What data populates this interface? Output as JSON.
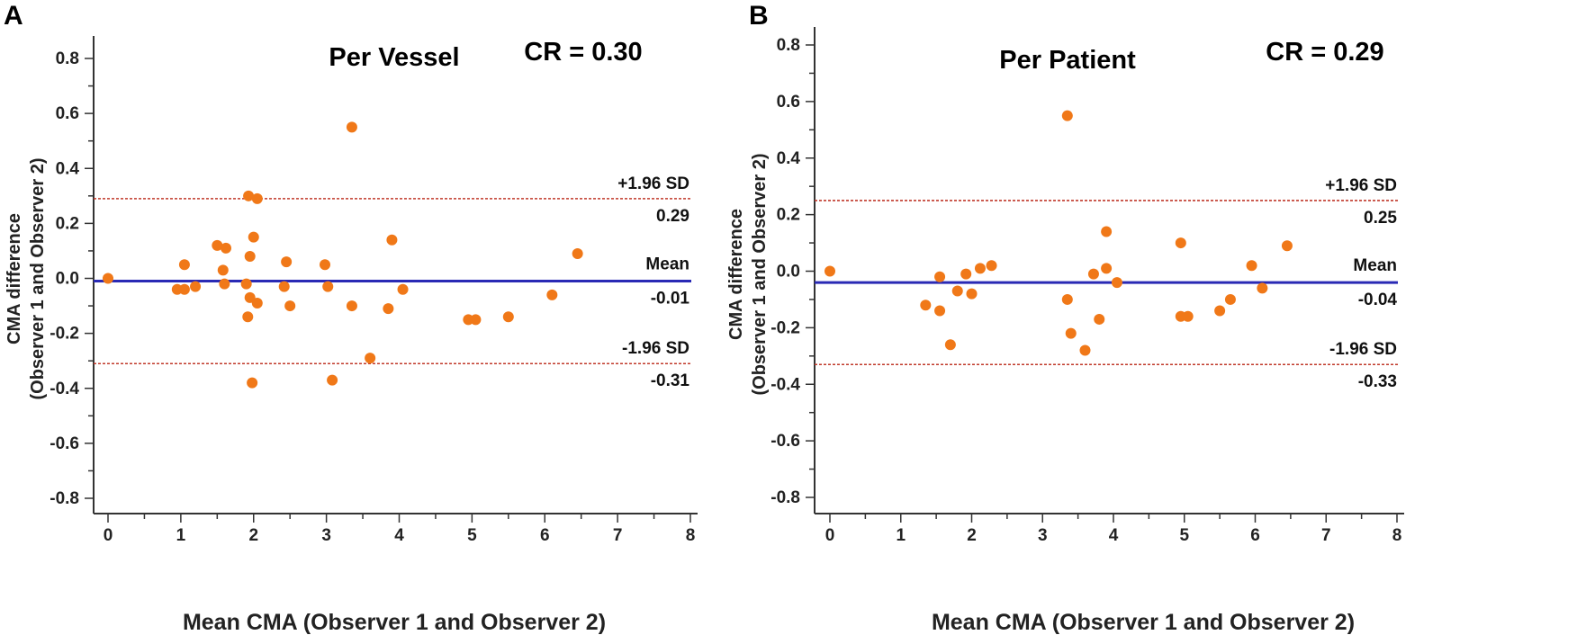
{
  "colors": {
    "point": "#f07818",
    "mean_line": "#2a2ab5",
    "limit_line": "#c0392b",
    "axis": "#333333"
  },
  "chart_data": [
    {
      "type": "scatter",
      "panel": "A",
      "title": "Per Vessel",
      "annotation": "CR = 0.30",
      "xlabel": "Mean CMA (Observer 1 and Observer 2)",
      "ylabel": [
        "CMA difference",
        "(Observer 1 and Observer 2)"
      ],
      "xlim": [
        0,
        8
      ],
      "ylim": [
        -0.85,
        0.85
      ],
      "xticks": [
        "0",
        "1",
        "2",
        "3",
        "4",
        "5",
        "6",
        "7",
        "8"
      ],
      "yticks": [
        "0.8",
        "0.6",
        "0.4",
        "0.2",
        "0.0",
        "-0.2",
        "-0.4",
        "-0.6",
        "-0.8"
      ],
      "grid": false,
      "lines": {
        "upper": {
          "label": "+1.96 SD",
          "value": 0.29,
          "value_text": "0.29"
        },
        "mean": {
          "label": "Mean",
          "value": -0.01,
          "value_text": "-0.01"
        },
        "lower": {
          "label": "-1.96 SD",
          "value": -0.31,
          "value_text": "-0.31"
        }
      },
      "points": [
        {
          "x": 0.0,
          "y": 0.0
        },
        {
          "x": 0.95,
          "y": -0.04
        },
        {
          "x": 1.05,
          "y": -0.04
        },
        {
          "x": 1.05,
          "y": 0.05
        },
        {
          "x": 1.2,
          "y": -0.03
        },
        {
          "x": 1.5,
          "y": 0.12
        },
        {
          "x": 1.58,
          "y": 0.03
        },
        {
          "x": 1.6,
          "y": -0.02
        },
        {
          "x": 1.62,
          "y": 0.11
        },
        {
          "x": 1.9,
          "y": -0.02
        },
        {
          "x": 1.92,
          "y": -0.14
        },
        {
          "x": 1.93,
          "y": 0.3
        },
        {
          "x": 1.95,
          "y": 0.08
        },
        {
          "x": 1.95,
          "y": -0.07
        },
        {
          "x": 2.0,
          "y": 0.15
        },
        {
          "x": 2.05,
          "y": 0.29
        },
        {
          "x": 2.05,
          "y": -0.09
        },
        {
          "x": 1.98,
          "y": -0.38
        },
        {
          "x": 2.42,
          "y": -0.03
        },
        {
          "x": 2.45,
          "y": 0.06
        },
        {
          "x": 2.5,
          "y": -0.1
        },
        {
          "x": 2.98,
          "y": 0.05
        },
        {
          "x": 3.02,
          "y": -0.03
        },
        {
          "x": 3.08,
          "y": -0.37
        },
        {
          "x": 3.35,
          "y": 0.55
        },
        {
          "x": 3.35,
          "y": -0.1
        },
        {
          "x": 3.6,
          "y": -0.29
        },
        {
          "x": 3.85,
          "y": -0.11
        },
        {
          "x": 3.9,
          "y": 0.14
        },
        {
          "x": 4.05,
          "y": -0.04
        },
        {
          "x": 4.95,
          "y": -0.15
        },
        {
          "x": 5.05,
          "y": -0.15
        },
        {
          "x": 5.5,
          "y": -0.14
        },
        {
          "x": 6.1,
          "y": -0.06
        },
        {
          "x": 6.45,
          "y": 0.09
        }
      ]
    },
    {
      "type": "scatter",
      "panel": "B",
      "title": "Per Patient",
      "annotation": "CR = 0.29",
      "xlabel": "Mean CMA (Observer 1 and Observer 2)",
      "ylabel": [
        "CMA difference",
        "(Observer 1 and Observer 2)"
      ],
      "xlim": [
        0,
        8
      ],
      "ylim": [
        -0.85,
        0.85
      ],
      "xticks": [
        "0",
        "1",
        "2",
        "3",
        "4",
        "5",
        "6",
        "7",
        "8"
      ],
      "yticks": [
        "0.8",
        "0.6",
        "0.4",
        "0.2",
        "0.0",
        "-0.2",
        "-0.4",
        "-0.6",
        "-0.8"
      ],
      "grid": false,
      "lines": {
        "upper": {
          "label": "+1.96 SD",
          "value": 0.25,
          "value_text": "0.25"
        },
        "mean": {
          "label": "Mean",
          "value": -0.04,
          "value_text": "-0.04"
        },
        "lower": {
          "label": "-1.96 SD",
          "value": -0.33,
          "value_text": "-0.33"
        }
      },
      "points": [
        {
          "x": 0.0,
          "y": 0.0
        },
        {
          "x": 1.35,
          "y": -0.12
        },
        {
          "x": 1.55,
          "y": -0.02
        },
        {
          "x": 1.55,
          "y": -0.14
        },
        {
          "x": 1.7,
          "y": -0.26
        },
        {
          "x": 1.8,
          "y": -0.07
        },
        {
          "x": 1.92,
          "y": -0.01
        },
        {
          "x": 2.0,
          "y": -0.08
        },
        {
          "x": 2.12,
          "y": 0.01
        },
        {
          "x": 2.28,
          "y": 0.02
        },
        {
          "x": 3.35,
          "y": 0.55
        },
        {
          "x": 3.35,
          "y": -0.1
        },
        {
          "x": 3.4,
          "y": -0.22
        },
        {
          "x": 3.6,
          "y": -0.28
        },
        {
          "x": 3.72,
          "y": -0.01
        },
        {
          "x": 3.8,
          "y": -0.17
        },
        {
          "x": 3.9,
          "y": 0.01
        },
        {
          "x": 3.9,
          "y": 0.14
        },
        {
          "x": 4.05,
          "y": -0.04
        },
        {
          "x": 4.95,
          "y": 0.1
        },
        {
          "x": 4.95,
          "y": -0.16
        },
        {
          "x": 5.05,
          "y": -0.16
        },
        {
          "x": 5.5,
          "y": -0.14
        },
        {
          "x": 5.65,
          "y": -0.1
        },
        {
          "x": 5.95,
          "y": 0.02
        },
        {
          "x": 6.1,
          "y": -0.06
        },
        {
          "x": 6.45,
          "y": 0.09
        }
      ]
    }
  ]
}
